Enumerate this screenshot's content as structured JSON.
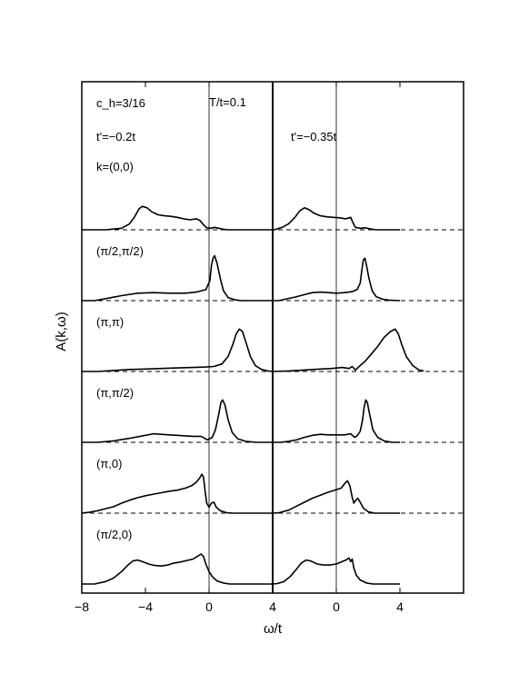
{
  "chart_data": {
    "type": "line",
    "ylabel": "A(k,ω)",
    "xlabel": "ω/t",
    "annotations": {
      "density": "c_h=3/16",
      "temperature": "T/t=0.1",
      "left_tprime": "t'=−0.2t",
      "right_tprime": "t'=−0.35t"
    },
    "panels": [
      {
        "tprime": "t'=−0.2t",
        "xlim": [
          -8,
          4
        ],
        "xticks": [
          "−8",
          "−4",
          "0",
          "4"
        ]
      },
      {
        "tprime": "t'=−0.35t",
        "xlim": [
          -4,
          4
        ],
        "xticks": [
          "−4",
          "0",
          "4"
        ]
      }
    ],
    "x_scale": "shared: 1 unit of ω/t equals the same length in both panels",
    "k_points": [
      {
        "label": "k=(0,0)",
        "left": [
          [
            -8,
            0
          ],
          [
            -6.5,
            0
          ],
          [
            -5.5,
            0.03
          ],
          [
            -5,
            0.12
          ],
          [
            -4.7,
            0.25
          ],
          [
            -4.4,
            0.42
          ],
          [
            -4.2,
            0.47
          ],
          [
            -3.9,
            0.44
          ],
          [
            -3.6,
            0.36
          ],
          [
            -3.2,
            0.3
          ],
          [
            -2.8,
            0.28
          ],
          [
            -2.4,
            0.27
          ],
          [
            -2,
            0.25
          ],
          [
            -1.6,
            0.22
          ],
          [
            -1.2,
            0.2
          ],
          [
            -0.8,
            0.22
          ],
          [
            -0.55,
            0.18
          ],
          [
            -0.35,
            0.1
          ],
          [
            -0.15,
            0.04
          ],
          [
            0.1,
            0.03
          ],
          [
            0.35,
            0.05
          ],
          [
            0.6,
            0.03
          ],
          [
            0.9,
            0.01
          ],
          [
            1.2,
            0
          ],
          [
            4,
            0
          ]
        ],
        "right": [
          [
            -4,
            0
          ],
          [
            -3.9,
            0
          ],
          [
            -3.7,
            0.02
          ],
          [
            -3.4,
            0.05
          ],
          [
            -3,
            0.12
          ],
          [
            -2.6,
            0.25
          ],
          [
            -2.3,
            0.38
          ],
          [
            -2.0,
            0.44
          ],
          [
            -1.7,
            0.4
          ],
          [
            -1.4,
            0.33
          ],
          [
            -1.0,
            0.28
          ],
          [
            -0.6,
            0.26
          ],
          [
            -0.2,
            0.25
          ],
          [
            0.2,
            0.24
          ],
          [
            0.6,
            0.22
          ],
          [
            0.9,
            0.25
          ],
          [
            1.05,
            0.14
          ],
          [
            1.2,
            0.05
          ],
          [
            1.5,
            0.03
          ],
          [
            1.8,
            0.04
          ],
          [
            2.1,
            0.02
          ],
          [
            2.5,
            0
          ],
          [
            4,
            0
          ]
        ]
      },
      {
        "label": "(π/2,π/2)",
        "left": [
          [
            -8,
            0
          ],
          [
            -7.2,
            0
          ],
          [
            -6.5,
            0.04
          ],
          [
            -5.5,
            0.1
          ],
          [
            -4.5,
            0.15
          ],
          [
            -3.5,
            0.16
          ],
          [
            -2.5,
            0.15
          ],
          [
            -1.5,
            0.15
          ],
          [
            -0.8,
            0.17
          ],
          [
            -0.2,
            0.22
          ],
          [
            0.05,
            0.4
          ],
          [
            0.15,
            0.7
          ],
          [
            0.25,
            0.85
          ],
          [
            0.35,
            0.9
          ],
          [
            0.5,
            0.75
          ],
          [
            0.7,
            0.45
          ],
          [
            0.9,
            0.2
          ],
          [
            1.2,
            0.06
          ],
          [
            1.6,
            0.02
          ],
          [
            2,
            0
          ],
          [
            4,
            0
          ]
        ],
        "right": [
          [
            -4,
            0
          ],
          [
            -3.6,
            0
          ],
          [
            -3.2,
            0.03
          ],
          [
            -2.6,
            0.07
          ],
          [
            -2,
            0.12
          ],
          [
            -1.5,
            0.16
          ],
          [
            -1,
            0.17
          ],
          [
            -0.5,
            0.16
          ],
          [
            0,
            0.15
          ],
          [
            0.5,
            0.16
          ],
          [
            1,
            0.18
          ],
          [
            1.3,
            0.22
          ],
          [
            1.5,
            0.35
          ],
          [
            1.6,
            0.6
          ],
          [
            1.7,
            0.82
          ],
          [
            1.8,
            0.85
          ],
          [
            1.9,
            0.7
          ],
          [
            2.05,
            0.45
          ],
          [
            2.25,
            0.2
          ],
          [
            2.5,
            0.08
          ],
          [
            2.9,
            0.03
          ],
          [
            3.3,
            0.01
          ],
          [
            4,
            0
          ]
        ]
      },
      {
        "label": "(π,π)",
        "left": [
          [
            -8,
            0
          ],
          [
            -7,
            0
          ],
          [
            -6,
            0.02
          ],
          [
            -5,
            0.04
          ],
          [
            -4,
            0.05
          ],
          [
            -3,
            0.06
          ],
          [
            -2,
            0.07
          ],
          [
            -1,
            0.08
          ],
          [
            -0.2,
            0.09
          ],
          [
            0.3,
            0.1
          ],
          [
            0.8,
            0.15
          ],
          [
            1.2,
            0.3
          ],
          [
            1.5,
            0.55
          ],
          [
            1.7,
            0.75
          ],
          [
            1.9,
            0.85
          ],
          [
            2.1,
            0.8
          ],
          [
            2.3,
            0.6
          ],
          [
            2.6,
            0.3
          ],
          [
            2.9,
            0.12
          ],
          [
            3.3,
            0.04
          ],
          [
            3.7,
            0.01
          ],
          [
            4,
            0
          ]
        ],
        "right": [
          [
            -4,
            0
          ],
          [
            -3,
            0.01
          ],
          [
            -2,
            0.03
          ],
          [
            -1,
            0.05
          ],
          [
            -0.3,
            0.06
          ],
          [
            0.4,
            0.08
          ],
          [
            0.8,
            0.06
          ],
          [
            1.0,
            0.1
          ],
          [
            1.2,
            0.03
          ],
          [
            1.5,
            0.12
          ],
          [
            1.8,
            0.2
          ],
          [
            2.2,
            0.35
          ],
          [
            2.6,
            0.5
          ],
          [
            3.0,
            0.68
          ],
          [
            3.4,
            0.8
          ],
          [
            3.7,
            0.85
          ],
          [
            3.9,
            0.75
          ],
          [
            4.1,
            0.55
          ],
          [
            4.4,
            0.3
          ],
          [
            4.8,
            0.12
          ],
          [
            5.2,
            0.03
          ],
          [
            5.5,
            0.01
          ]
        ]
      },
      {
        "label": "(π,π/2)",
        "left": [
          [
            -8,
            0
          ],
          [
            -7,
            0
          ],
          [
            -6,
            0.03
          ],
          [
            -5,
            0.08
          ],
          [
            -4,
            0.14
          ],
          [
            -3.5,
            0.17
          ],
          [
            -3,
            0.16
          ],
          [
            -2.5,
            0.15
          ],
          [
            -2,
            0.14
          ],
          [
            -1.5,
            0.13
          ],
          [
            -1,
            0.12
          ],
          [
            -0.5,
            0.12
          ],
          [
            -0.1,
            0.05
          ],
          [
            0.2,
            0.1
          ],
          [
            0.4,
            0.25
          ],
          [
            0.6,
            0.55
          ],
          [
            0.75,
            0.8
          ],
          [
            0.85,
            0.85
          ],
          [
            1.0,
            0.75
          ],
          [
            1.2,
            0.45
          ],
          [
            1.45,
            0.2
          ],
          [
            1.8,
            0.07
          ],
          [
            2.3,
            0.02
          ],
          [
            3,
            0
          ],
          [
            4,
            0
          ]
        ],
        "right": [
          [
            -4,
            0
          ],
          [
            -3.5,
            0
          ],
          [
            -3,
            0.02
          ],
          [
            -2.5,
            0.05
          ],
          [
            -2,
            0.1
          ],
          [
            -1.5,
            0.14
          ],
          [
            -1,
            0.16
          ],
          [
            -0.5,
            0.15
          ],
          [
            0,
            0.15
          ],
          [
            0.5,
            0.15
          ],
          [
            0.9,
            0.17
          ],
          [
            1.15,
            0.1
          ],
          [
            1.3,
            0.13
          ],
          [
            1.5,
            0.22
          ],
          [
            1.65,
            0.45
          ],
          [
            1.75,
            0.7
          ],
          [
            1.85,
            0.85
          ],
          [
            1.95,
            0.8
          ],
          [
            2.1,
            0.55
          ],
          [
            2.3,
            0.25
          ],
          [
            2.6,
            0.1
          ],
          [
            3,
            0.03
          ],
          [
            3.5,
            0
          ],
          [
            4,
            0
          ]
        ]
      },
      {
        "label": "(π,0)",
        "left": [
          [
            -8,
            0
          ],
          [
            -7.5,
            0.02
          ],
          [
            -7,
            0.05
          ],
          [
            -6.5,
            0.09
          ],
          [
            -6,
            0.13
          ],
          [
            -5.5,
            0.2
          ],
          [
            -5,
            0.26
          ],
          [
            -4.5,
            0.31
          ],
          [
            -4,
            0.35
          ],
          [
            -3.5,
            0.38
          ],
          [
            -3,
            0.41
          ],
          [
            -2.5,
            0.44
          ],
          [
            -2,
            0.46
          ],
          [
            -1.5,
            0.5
          ],
          [
            -1.1,
            0.55
          ],
          [
            -0.8,
            0.62
          ],
          [
            -0.6,
            0.7
          ],
          [
            -0.45,
            0.78
          ],
          [
            -0.35,
            0.72
          ],
          [
            -0.25,
            0.45
          ],
          [
            -0.15,
            0.2
          ],
          [
            0,
            0.12
          ],
          [
            0.15,
            0.2
          ],
          [
            0.3,
            0.22
          ],
          [
            0.45,
            0.12
          ],
          [
            0.7,
            0.05
          ],
          [
            1.1,
            0.01
          ],
          [
            1.5,
            0
          ],
          [
            4,
            0
          ]
        ],
        "right": [
          [
            -4,
            0
          ],
          [
            -3.6,
            0.01
          ],
          [
            -3,
            0.06
          ],
          [
            -2.5,
            0.14
          ],
          [
            -2,
            0.22
          ],
          [
            -1.5,
            0.3
          ],
          [
            -1,
            0.36
          ],
          [
            -0.5,
            0.42
          ],
          [
            0,
            0.47
          ],
          [
            0.3,
            0.5
          ],
          [
            0.55,
            0.6
          ],
          [
            0.7,
            0.65
          ],
          [
            0.85,
            0.55
          ],
          [
            1.0,
            0.32
          ],
          [
            1.1,
            0.2
          ],
          [
            1.2,
            0.25
          ],
          [
            1.35,
            0.3
          ],
          [
            1.5,
            0.22
          ],
          [
            1.7,
            0.1
          ],
          [
            2,
            0.03
          ],
          [
            2.4,
            0
          ],
          [
            4,
            0
          ]
        ]
      },
      {
        "label": "(π/2,0)",
        "left": [
          [
            -8,
            0
          ],
          [
            -7.2,
            0
          ],
          [
            -6.5,
            0.05
          ],
          [
            -6,
            0.12
          ],
          [
            -5.5,
            0.25
          ],
          [
            -5.1,
            0.38
          ],
          [
            -4.8,
            0.46
          ],
          [
            -4.5,
            0.48
          ],
          [
            -4.2,
            0.45
          ],
          [
            -3.8,
            0.4
          ],
          [
            -3.4,
            0.37
          ],
          [
            -3,
            0.36
          ],
          [
            -2.6,
            0.38
          ],
          [
            -2.2,
            0.42
          ],
          [
            -1.8,
            0.44
          ],
          [
            -1.4,
            0.47
          ],
          [
            -1.0,
            0.5
          ],
          [
            -0.7,
            0.56
          ],
          [
            -0.5,
            0.6
          ],
          [
            -0.35,
            0.55
          ],
          [
            -0.2,
            0.4
          ],
          [
            0,
            0.25
          ],
          [
            0.2,
            0.15
          ],
          [
            0.5,
            0.06
          ],
          [
            0.9,
            0.02
          ],
          [
            1.3,
            0
          ],
          [
            4,
            0
          ]
        ],
        "right": [
          [
            -4,
            0
          ],
          [
            -3.7,
            0.01
          ],
          [
            -3.3,
            0.05
          ],
          [
            -2.9,
            0.15
          ],
          [
            -2.5,
            0.3
          ],
          [
            -2.2,
            0.42
          ],
          [
            -1.9,
            0.48
          ],
          [
            -1.6,
            0.46
          ],
          [
            -1.2,
            0.4
          ],
          [
            -0.8,
            0.38
          ],
          [
            -0.4,
            0.38
          ],
          [
            0,
            0.4
          ],
          [
            0.3,
            0.44
          ],
          [
            0.6,
            0.48
          ],
          [
            0.8,
            0.52
          ],
          [
            0.9,
            0.45
          ],
          [
            1.0,
            0.5
          ],
          [
            1.1,
            0.32
          ],
          [
            1.25,
            0.18
          ],
          [
            1.5,
            0.08
          ],
          [
            1.9,
            0.02
          ],
          [
            2.3,
            0
          ],
          [
            4,
            0
          ]
        ]
      }
    ]
  }
}
